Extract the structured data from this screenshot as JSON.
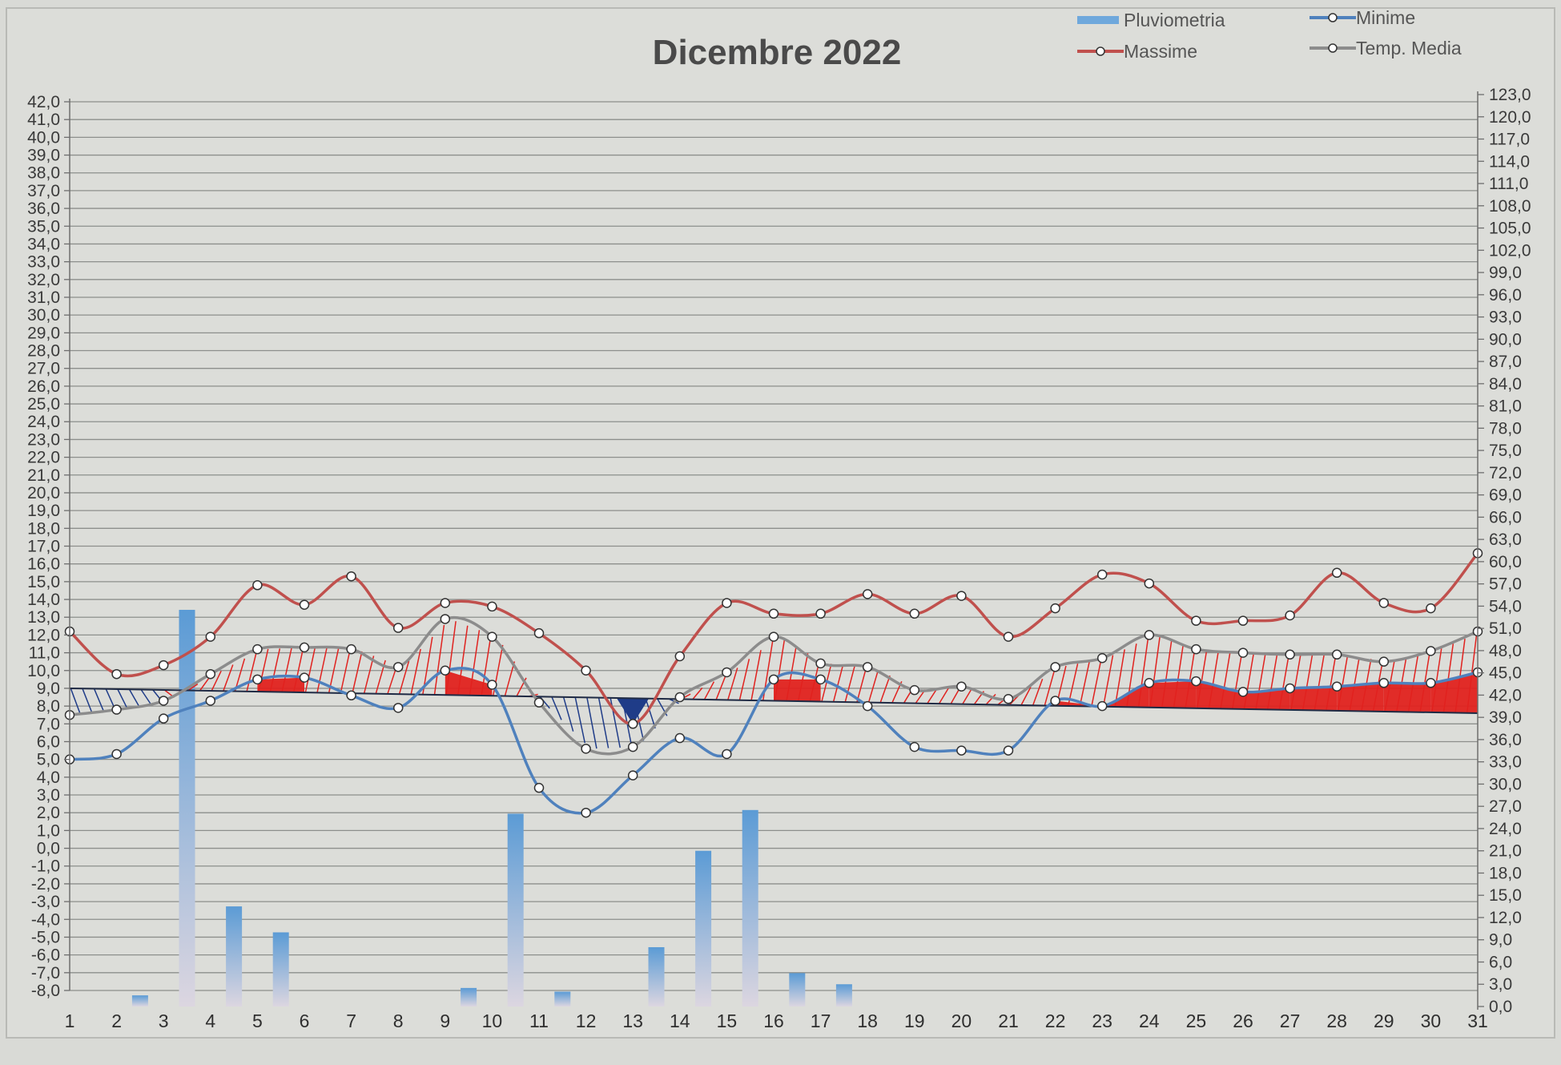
{
  "chart_data": {
    "type": "line",
    "title": "Dicembre 2022",
    "categories": [
      "1",
      "2",
      "3",
      "4",
      "5",
      "6",
      "7",
      "8",
      "9",
      "10",
      "11",
      "12",
      "13",
      "14",
      "15",
      "16",
      "17",
      "18",
      "19",
      "20",
      "21",
      "22",
      "23",
      "24",
      "25",
      "26",
      "27",
      "28",
      "29",
      "30",
      "31"
    ],
    "series": [
      {
        "name": "Pluviometria",
        "kind": "bar",
        "axis": "right",
        "color": "#6fa8dc",
        "values": [
          0,
          1.5,
          53.5,
          13.5,
          10,
          0,
          0,
          0,
          2.5,
          26,
          2,
          0,
          8,
          21,
          26.5,
          4.5,
          3,
          0,
          0,
          0,
          0,
          0,
          0,
          0,
          0,
          0,
          0,
          0,
          0,
          0,
          0
        ]
      },
      {
        "name": "Massime",
        "kind": "line",
        "axis": "left",
        "color": "#c0504d",
        "values": [
          12.2,
          9.8,
          10.3,
          11.9,
          14.8,
          13.7,
          15.3,
          12.4,
          13.8,
          13.6,
          12.1,
          10.0,
          7.0,
          10.8,
          13.8,
          13.2,
          13.2,
          14.3,
          13.2,
          14.2,
          11.9,
          13.5,
          15.4,
          14.9,
          12.8,
          12.8,
          13.1,
          15.5,
          13.8,
          13.5,
          16.6
        ]
      },
      {
        "name": "Minime",
        "kind": "line",
        "axis": "left",
        "color": "#4f81bd",
        "values": [
          5.0,
          5.3,
          7.3,
          8.3,
          9.5,
          9.6,
          8.6,
          7.9,
          10.0,
          9.2,
          3.4,
          2.0,
          4.1,
          6.2,
          5.3,
          9.5,
          9.5,
          8.0,
          5.7,
          5.5,
          5.5,
          8.3,
          8.0,
          9.3,
          9.4,
          8.8,
          9.0,
          9.1,
          9.3,
          9.3,
          9.9
        ]
      },
      {
        "name": "Temp. Media",
        "kind": "line",
        "axis": "left",
        "color": "#8c8c8c",
        "values": [
          7.5,
          7.8,
          8.3,
          9.8,
          11.2,
          11.3,
          11.2,
          10.2,
          12.9,
          11.9,
          8.2,
          5.6,
          5.7,
          8.5,
          9.9,
          11.9,
          10.4,
          10.2,
          8.9,
          9.1,
          8.4,
          10.2,
          10.7,
          12.0,
          11.2,
          11.0,
          10.9,
          10.9,
          10.5,
          11.1,
          12.2
        ]
      }
    ],
    "reference_line": {
      "from": 9.0,
      "to": 7.6,
      "color": "#1f2a44"
    },
    "shading": {
      "above_color": "#e0221f",
      "below_color": "#1f3c88"
    },
    "y_left": {
      "min": -8,
      "max": 42,
      "step": 1,
      "decimals": 1
    },
    "y_right": {
      "min": 0,
      "max": 123,
      "step": 3,
      "decimals": 1
    },
    "grid": true,
    "legend_position": "top-right",
    "colors": {
      "background": "#dcddd9",
      "gridline": "#8d8f8c",
      "axis": "#6e6e6e"
    }
  }
}
